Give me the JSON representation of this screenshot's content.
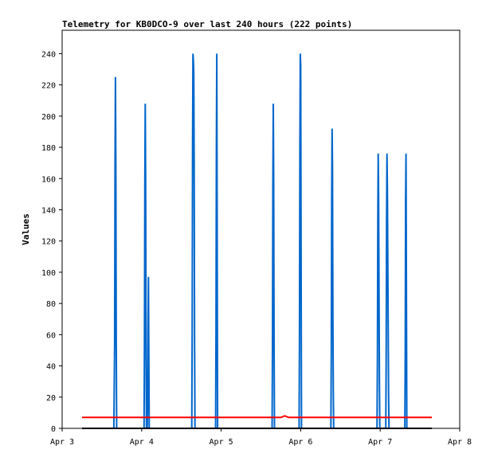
{
  "chart_data": {
    "type": "line",
    "title": "Telemetry for KB0DCO-9 over last 240 hours (222 points)",
    "xlabel": "",
    "ylabel": "Values",
    "ylim": [
      0,
      255
    ],
    "xlim_days": [
      3,
      8
    ],
    "x_ticks": [
      "Apr 3",
      "Apr 4",
      "Apr 5",
      "Apr 6",
      "Apr 7",
      "Apr 8"
    ],
    "y_ticks": [
      "0",
      "20",
      "40",
      "60",
      "80",
      "100",
      "120",
      "140",
      "160",
      "180",
      "200",
      "220",
      "240"
    ],
    "grid": false,
    "legend": "none",
    "series": [
      {
        "color": "#0066cc",
        "points": [
          [
            3.65,
            0
          ],
          [
            3.66,
            56
          ],
          [
            3.665,
            168
          ],
          [
            3.67,
            225
          ],
          [
            3.675,
            168
          ],
          [
            3.68,
            56
          ],
          [
            3.685,
            0
          ],
          [
            4.03,
            0
          ],
          [
            4.035,
            52
          ],
          [
            4.04,
            156
          ],
          [
            4.045,
            208
          ],
          [
            4.05,
            156
          ],
          [
            4.055,
            52
          ],
          [
            4.06,
            0
          ],
          [
            4.07,
            0
          ],
          [
            4.075,
            16
          ],
          [
            4.08,
            64
          ],
          [
            4.085,
            97
          ],
          [
            4.09,
            48
          ],
          [
            4.095,
            0
          ],
          [
            4.63,
            0
          ],
          [
            4.635,
            60
          ],
          [
            4.64,
            180
          ],
          [
            4.645,
            240
          ],
          [
            4.65,
            236
          ],
          [
            4.655,
            228
          ],
          [
            4.66,
            168
          ],
          [
            4.665,
            56
          ],
          [
            4.67,
            0
          ],
          [
            4.93,
            0
          ],
          [
            4.935,
            60
          ],
          [
            4.94,
            180
          ],
          [
            4.945,
            240
          ],
          [
            4.95,
            120
          ],
          [
            4.955,
            0
          ],
          [
            5.64,
            0
          ],
          [
            5.645,
            52
          ],
          [
            5.65,
            156
          ],
          [
            5.655,
            208
          ],
          [
            5.66,
            156
          ],
          [
            5.665,
            52
          ],
          [
            5.67,
            0
          ],
          [
            5.98,
            0
          ],
          [
            5.985,
            60
          ],
          [
            5.99,
            180
          ],
          [
            5.995,
            240
          ],
          [
            6.0,
            232
          ],
          [
            6.005,
            112
          ],
          [
            6.01,
            0
          ],
          [
            6.38,
            0
          ],
          [
            6.385,
            48
          ],
          [
            6.39,
            144
          ],
          [
            6.395,
            192
          ],
          [
            6.4,
            168
          ],
          [
            6.405,
            72
          ],
          [
            6.41,
            24
          ],
          [
            6.415,
            0
          ],
          [
            6.96,
            0
          ],
          [
            6.965,
            44
          ],
          [
            6.97,
            132
          ],
          [
            6.975,
            176
          ],
          [
            6.98,
            147
          ],
          [
            6.985,
            88
          ],
          [
            6.99,
            30
          ],
          [
            6.995,
            0
          ],
          [
            7.07,
            0
          ],
          [
            7.075,
            44
          ],
          [
            7.08,
            132
          ],
          [
            7.085,
            176
          ],
          [
            7.09,
            154
          ],
          [
            7.095,
            110
          ],
          [
            7.1,
            66
          ],
          [
            7.105,
            22
          ],
          [
            7.11,
            0
          ],
          [
            7.31,
            0
          ],
          [
            7.315,
            44
          ],
          [
            7.32,
            147
          ],
          [
            7.325,
            176
          ],
          [
            7.33,
            88
          ],
          [
            7.335,
            0
          ]
        ]
      },
      {
        "color": "#ff0000",
        "points": [
          [
            3.25,
            7
          ],
          [
            5.75,
            7
          ],
          [
            5.8,
            8
          ],
          [
            5.85,
            7
          ],
          [
            7.65,
            7
          ]
        ]
      },
      {
        "color": "#000000",
        "points": [
          [
            3.25,
            0
          ],
          [
            7.65,
            0
          ]
        ]
      }
    ]
  }
}
